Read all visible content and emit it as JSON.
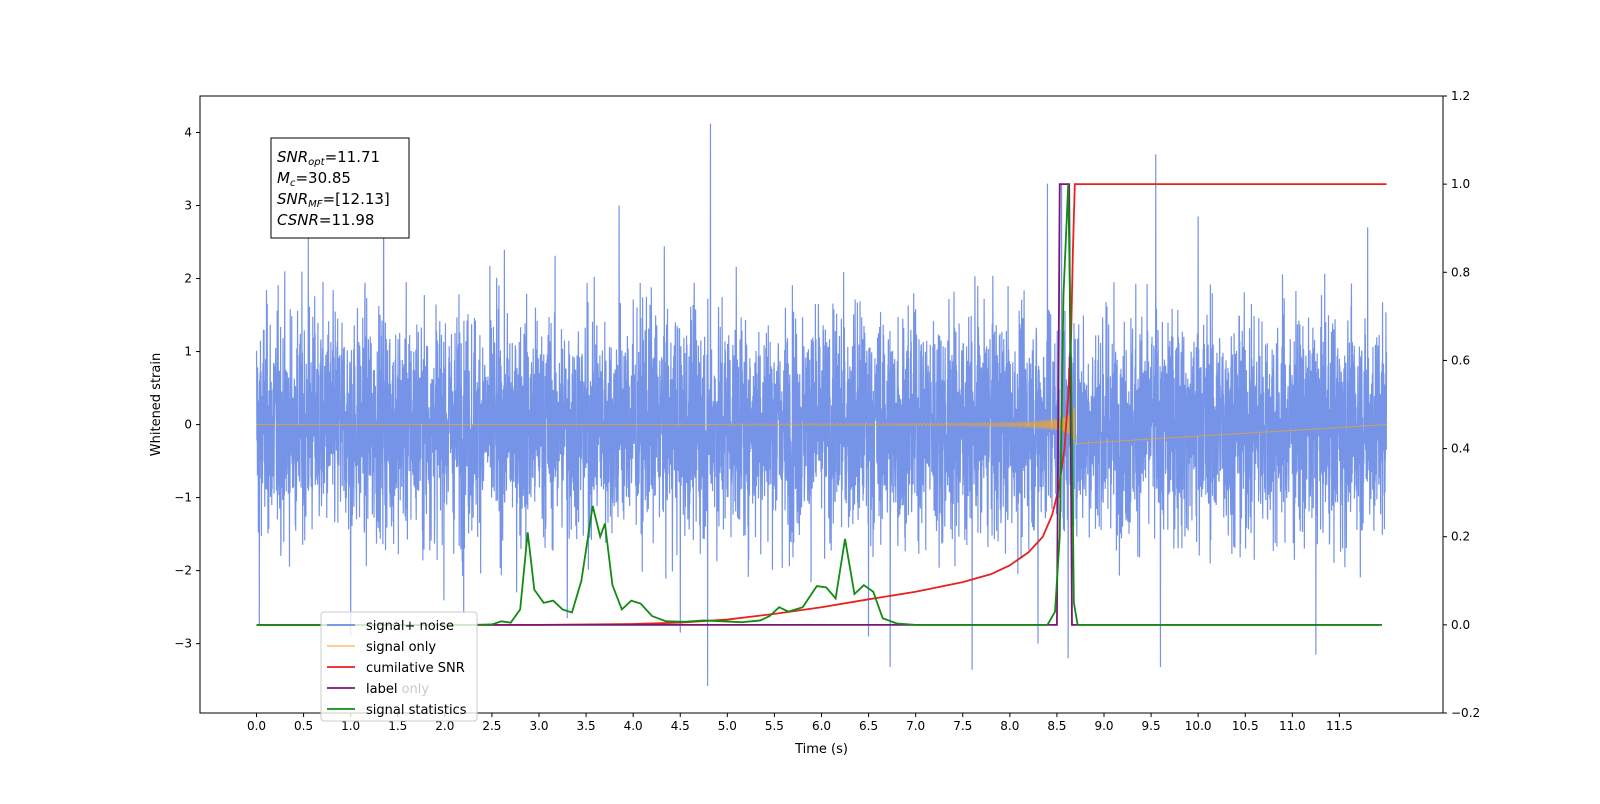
{
  "chart_data": {
    "type": "line",
    "xlabel": "Time (s)",
    "ylabel": "Whitened strain",
    "xlim": [
      -0.6,
      12.6
    ],
    "ylim": [
      -3.95,
      4.5
    ],
    "y2lim": [
      -0.2,
      1.2
    ],
    "x_ticks": [
      0.0,
      0.5,
      1.0,
      1.5,
      2.0,
      2.5,
      3.0,
      3.5,
      4.0,
      4.5,
      5.0,
      5.5,
      6.0,
      6.5,
      7.0,
      7.5,
      8.0,
      8.5,
      9.0,
      9.5,
      10.0,
      10.5,
      11.0,
      11.5
    ],
    "x_tick_labels": [
      "0.0",
      "0.5",
      "1.0",
      "1.5",
      "2.0",
      "2.5",
      "3.0",
      "3.5",
      "4.0",
      "4.5",
      "5.0",
      "5.5",
      "6.0",
      "6.5",
      "7.0",
      "7.5",
      "8.0",
      "8.5",
      "9.0",
      "9.5",
      "10.0",
      "10.5",
      "11.0",
      "11.5"
    ],
    "y_ticks": [
      -3,
      -2,
      -1,
      0,
      1,
      2,
      3,
      4
    ],
    "y_tick_labels": [
      "−3",
      "−2",
      "−1",
      "0",
      "1",
      "2",
      "3",
      "4"
    ],
    "y2_ticks": [
      -0.2,
      0.0,
      0.2,
      0.4,
      0.6,
      0.8,
      1.0,
      1.2
    ],
    "y2_tick_labels": [
      "−0.2",
      "0.0",
      "0.2",
      "0.4",
      "0.6",
      "0.8",
      "1.0",
      "1.2"
    ],
    "legend": {
      "placement": "lower-left",
      "entries": [
        "signal+ noise",
        "signal only",
        "cumilative SNR",
        "label",
        "signal statistics"
      ],
      "ghost_entries": [
        "signal only",
        "label only"
      ]
    },
    "annotation": [
      {
        "base": "SNR",
        "sub": "opt",
        "value": "=11.71"
      },
      {
        "base": "M",
        "sub": "c",
        "value": "=30.85"
      },
      {
        "base": "SNR",
        "sub": "MF",
        "value": "=[12.13]"
      },
      {
        "base": "CSNR",
        "sub": "",
        "value": "=11.98"
      }
    ],
    "series": [
      {
        "name": "signal+ noise",
        "axis": "left",
        "color": "#6f8ee6",
        "time_range": [
          0.0,
          12.0
        ],
        "typical_range": [
          -1.6,
          1.6
        ],
        "extreme_range": [
          -3.6,
          4.1
        ],
        "spikes": [
          [
            4.82,
            4.12
          ],
          [
            4.79,
            -3.58
          ],
          [
            9.55,
            3.7
          ],
          [
            9.6,
            -3.32
          ],
          [
            8.4,
            3.3
          ],
          [
            6.73,
            -3.32
          ],
          [
            7.6,
            -3.36
          ],
          [
            11.25,
            -3.15
          ],
          [
            8.55,
            3.3
          ],
          [
            8.62,
            -3.2
          ],
          [
            2.2,
            -2.6
          ],
          [
            1.0,
            -2.9
          ],
          [
            0.03,
            -2.75
          ],
          [
            3.3,
            -2.65
          ],
          [
            1.35,
            3.3
          ],
          [
            3.85,
            3.0
          ],
          [
            0.55,
            2.55
          ],
          [
            6.5,
            -2.9
          ],
          [
            4.5,
            -2.85
          ],
          [
            8.3,
            -3.0
          ],
          [
            10.0,
            2.85
          ],
          [
            11.8,
            2.7
          ]
        ]
      },
      {
        "name": "signal only",
        "axis": "left",
        "color": "#f5a623",
        "chirp": {
          "start": 5.0,
          "end": 8.69,
          "peak_amplitude": 1.2
        }
      },
      {
        "name": "cumilative SNR",
        "axis": "right",
        "color": "#e8211d",
        "points": [
          [
            0.0,
            0.0
          ],
          [
            3.0,
            0.0
          ],
          [
            4.0,
            0.002
          ],
          [
            4.5,
            0.005
          ],
          [
            5.0,
            0.012
          ],
          [
            5.5,
            0.025
          ],
          [
            6.0,
            0.04
          ],
          [
            6.5,
            0.058
          ],
          [
            7.0,
            0.075
          ],
          [
            7.5,
            0.097
          ],
          [
            7.8,
            0.115
          ],
          [
            8.0,
            0.135
          ],
          [
            8.2,
            0.165
          ],
          [
            8.35,
            0.2
          ],
          [
            8.45,
            0.25
          ],
          [
            8.52,
            0.31
          ],
          [
            8.58,
            0.4
          ],
          [
            8.62,
            0.52
          ],
          [
            8.65,
            0.65
          ],
          [
            8.67,
            0.85
          ],
          [
            8.69,
            1.0
          ],
          [
            12.0,
            1.0
          ]
        ]
      },
      {
        "name": "label",
        "axis": "right",
        "color": "#7a1478",
        "points": [
          [
            0.0,
            0.0
          ],
          [
            8.5,
            0.0
          ],
          [
            8.53,
            1.0
          ],
          [
            8.63,
            1.0
          ],
          [
            8.66,
            0.0
          ],
          [
            11.95,
            0.0
          ]
        ]
      },
      {
        "name": "signal statistics",
        "axis": "right",
        "color": "#138a13",
        "points": [
          [
            0.0,
            0.0
          ],
          [
            2.3,
            0.0
          ],
          [
            2.5,
            0.001
          ],
          [
            2.6,
            0.008
          ],
          [
            2.7,
            0.005
          ],
          [
            2.8,
            0.035
          ],
          [
            2.88,
            0.21
          ],
          [
            2.95,
            0.08
          ],
          [
            3.05,
            0.05
          ],
          [
            3.15,
            0.055
          ],
          [
            3.25,
            0.035
          ],
          [
            3.35,
            0.028
          ],
          [
            3.45,
            0.1
          ],
          [
            3.57,
            0.27
          ],
          [
            3.65,
            0.2
          ],
          [
            3.7,
            0.23
          ],
          [
            3.78,
            0.09
          ],
          [
            3.88,
            0.035
          ],
          [
            3.98,
            0.055
          ],
          [
            4.08,
            0.048
          ],
          [
            4.2,
            0.02
          ],
          [
            4.35,
            0.008
          ],
          [
            4.55,
            0.007
          ],
          [
            4.75,
            0.01
          ],
          [
            4.95,
            0.008
          ],
          [
            5.15,
            0.006
          ],
          [
            5.35,
            0.01
          ],
          [
            5.45,
            0.02
          ],
          [
            5.55,
            0.04
          ],
          [
            5.65,
            0.03
          ],
          [
            5.8,
            0.04
          ],
          [
            5.95,
            0.088
          ],
          [
            6.05,
            0.085
          ],
          [
            6.15,
            0.06
          ],
          [
            6.25,
            0.195
          ],
          [
            6.35,
            0.07
          ],
          [
            6.45,
            0.09
          ],
          [
            6.55,
            0.075
          ],
          [
            6.65,
            0.015
          ],
          [
            6.8,
            0.003
          ],
          [
            7.0,
            0.0
          ],
          [
            8.4,
            0.0
          ],
          [
            8.48,
            0.03
          ],
          [
            8.53,
            0.2
          ],
          [
            8.57,
            0.75
          ],
          [
            8.62,
            1.0
          ],
          [
            8.65,
            0.6
          ],
          [
            8.68,
            0.05
          ],
          [
            8.72,
            0.0
          ],
          [
            11.95,
            0.0
          ]
        ]
      }
    ]
  }
}
